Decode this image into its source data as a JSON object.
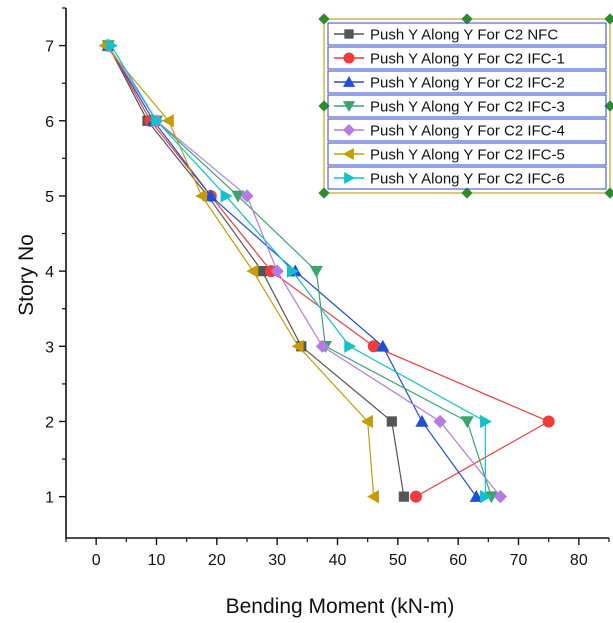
{
  "chart_data": {
    "type": "line",
    "xlabel": "Bending Moment (kN-m)",
    "ylabel": "Story No",
    "xlim": [
      -5,
      85
    ],
    "ylim": [
      0.45,
      7.5
    ],
    "xticks": [
      0,
      10,
      20,
      30,
      40,
      50,
      60,
      70,
      80
    ],
    "yticks": [
      1,
      2,
      3,
      4,
      5,
      6,
      7
    ],
    "grid": false,
    "legend_position": "top-right",
    "y": [
      1,
      2,
      3,
      4,
      5,
      6,
      7
    ],
    "series": [
      {
        "name": "Push Y Along Y For C2 NFC",
        "color": "#555555",
        "marker": "square",
        "x": [
          51,
          49,
          34,
          27.5,
          18.5,
          8.5,
          2
        ]
      },
      {
        "name": "Push Y Along Y For C2 IFC-1",
        "color": "#f03c3c",
        "marker": "circle",
        "x": [
          53,
          75,
          46,
          29,
          19,
          9,
          2
        ]
      },
      {
        "name": "Push Y Along Y For C2 IFC-2",
        "color": "#1f4fd6",
        "marker": "triangle-up",
        "x": [
          63,
          54,
          47.5,
          33,
          19,
          9.5,
          2
        ]
      },
      {
        "name": "Push Y Along Y For C2 IFC-3",
        "color": "#3aa56b",
        "marker": "triangle-down",
        "x": [
          65.5,
          61.5,
          38,
          36.5,
          23.5,
          10,
          2
        ]
      },
      {
        "name": "Push Y Along Y For C2 IFC-4",
        "color": "#b57be3",
        "marker": "diamond",
        "x": [
          67,
          57,
          37.5,
          30,
          25,
          10,
          2
        ]
      },
      {
        "name": "Push Y Along Y For C2 IFC-5",
        "color": "#c79a06",
        "marker": "triangle-left",
        "x": [
          46,
          45,
          33.5,
          26,
          17.5,
          12,
          1.5
        ]
      },
      {
        "name": "Push Y Along Y For C2 IFC-6",
        "color": "#13c2c8",
        "marker": "triangle-right",
        "x": [
          64.5,
          64.5,
          42,
          32.5,
          21.5,
          10,
          2.5
        ]
      }
    ]
  }
}
